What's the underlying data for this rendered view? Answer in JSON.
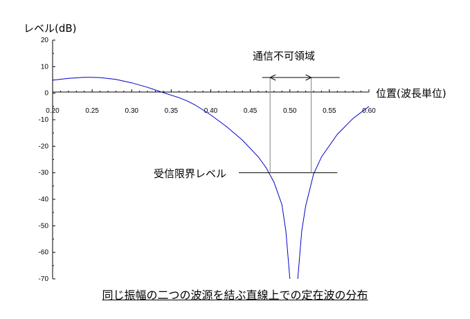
{
  "caption": "同じ振幅の二つの波源を結ぶ直線上での定在波の分布",
  "chart_data": {
    "type": "line",
    "title": "",
    "xlabel": "位置(波長単位)",
    "ylabel": "レベル(dB)",
    "xlim": [
      0.2,
      0.6
    ],
    "ylim": [
      -70,
      20
    ],
    "x_ticks": [
      "0.20",
      "0.25",
      "0.30",
      "0.35",
      "0.40",
      "0.45",
      "0.50",
      "0.55",
      "0.60"
    ],
    "y_ticks": [
      "20",
      "10",
      "0",
      "-10",
      "-20",
      "-30",
      "-40",
      "-50",
      "-60",
      "-70"
    ],
    "x_tick_values": [
      0.2,
      0.25,
      0.3,
      0.35,
      0.4,
      0.45,
      0.5,
      0.55,
      0.6
    ],
    "y_tick_values": [
      20,
      10,
      0,
      -10,
      -20,
      -30,
      -40,
      -50,
      -60,
      -70
    ],
    "grid": false,
    "series": [
      {
        "color": "#0000cc",
        "x": [
          0.2,
          0.22,
          0.24,
          0.25,
          0.26,
          0.28,
          0.3,
          0.32,
          0.34,
          0.36,
          0.37,
          0.38,
          0.4,
          0.42,
          0.44,
          0.46,
          0.47,
          0.48,
          0.49,
          0.495,
          0.5
        ],
        "y": [
          4.9,
          5.6,
          6.0,
          6.0,
          5.9,
          5.2,
          3.9,
          2.2,
          0.2,
          -1.7,
          -2.9,
          -4.4,
          -8.2,
          -12.6,
          -17.7,
          -24.0,
          -28.1,
          -33.6,
          -42.0,
          -52.0,
          -70
        ]
      },
      {
        "color": "#0000cc",
        "x": [
          0.51,
          0.515,
          0.52,
          0.53,
          0.54,
          0.56,
          0.58,
          0.6
        ],
        "y": [
          -70,
          -52.0,
          -42.5,
          -30.5,
          -24.0,
          -15.5,
          -9.5,
          -5.0
        ]
      }
    ],
    "annotations": {
      "reception_limit": {
        "label": "受信限界レベル",
        "level": -30,
        "x_end": 0.56
      },
      "blind_zone": {
        "label": "通信不可領域",
        "x_start": 0.475,
        "x_end": 0.527,
        "x_arrow_start": 0.465,
        "x_arrow_end": 0.563,
        "level": 8
      }
    }
  }
}
